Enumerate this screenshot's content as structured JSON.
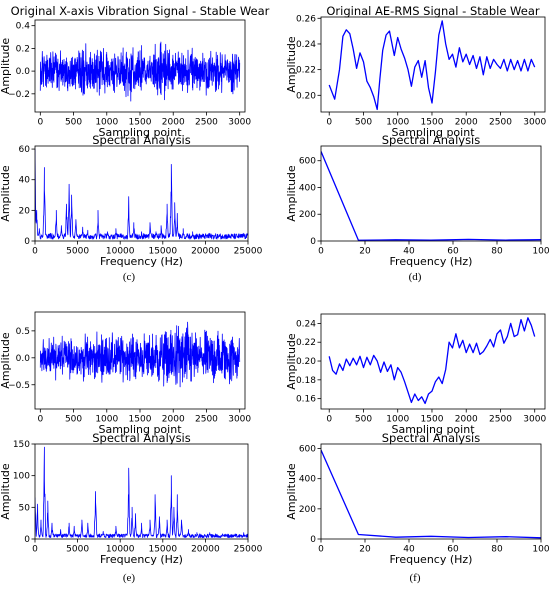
{
  "figure": {
    "captions": [
      "(c)",
      "(d)",
      "(e)",
      "(f)"
    ],
    "line_color": "#0000ff"
  },
  "chart_data": [
    {
      "type": "line",
      "title": "Original X-axis Vibration Signal - Stable Wear",
      "xlabel": "Sampling point",
      "ylabel": "Amplitude",
      "xlim": [
        -80,
        3080
      ],
      "ylim": [
        -0.36,
        0.45
      ],
      "xticks": [
        0,
        500,
        1000,
        1500,
        2000,
        2500,
        3000
      ],
      "yticks": [
        -0.2,
        0.0,
        0.2,
        0.4
      ],
      "ytick_labels": [
        "−0.2",
        "0.0",
        "0.2",
        "0.4"
      ],
      "series": [
        {
          "signal": "noise",
          "n_points": 3000,
          "envelope": [
            [
              0,
              0.2
            ],
            [
              250,
              0.22
            ],
            [
              500,
              0.24
            ],
            [
              650,
              0.33
            ],
            [
              800,
              0.24
            ],
            [
              1000,
              0.25
            ],
            [
              1250,
              0.28
            ],
            [
              1400,
              0.35
            ],
            [
              1550,
              0.25
            ],
            [
              1750,
              0.28
            ],
            [
              1850,
              0.4
            ],
            [
              1950,
              0.26
            ],
            [
              2200,
              0.25
            ],
            [
              2500,
              0.24
            ],
            [
              2800,
              0.24
            ],
            [
              3000,
              0.24
            ]
          ]
        }
      ]
    },
    {
      "type": "line",
      "title": "Original AE-RMS Signal - Stable Wear",
      "xlabel": "Sampling point",
      "ylabel": "Amplitude",
      "xlim": [
        -120,
        3150
      ],
      "ylim": [
        0.187,
        0.261
      ],
      "xticks": [
        0,
        500,
        1000,
        1500,
        2000,
        2500,
        3000
      ],
      "yticks": [
        0.2,
        0.22,
        0.24,
        0.26
      ],
      "ytick_labels": [
        "0.20",
        "0.22",
        "0.24",
        "0.26"
      ],
      "series": [
        {
          "x": [
            0,
            80,
            150,
            200,
            250,
            300,
            350,
            400,
            450,
            500,
            550,
            600,
            650,
            700,
            740,
            780,
            830,
            880,
            950,
            1000,
            1050,
            1100,
            1150,
            1200,
            1250,
            1300,
            1350,
            1400,
            1450,
            1500,
            1550,
            1600,
            1650,
            1700,
            1750,
            1800,
            1850,
            1900,
            1950,
            2000,
            2050,
            2100,
            2150,
            2200,
            2250,
            2300,
            2350,
            2400,
            2450,
            2500,
            2550,
            2600,
            2650,
            2700,
            2750,
            2800,
            2850,
            2900,
            2950,
            3000
          ],
          "y": [
            0.208,
            0.197,
            0.22,
            0.246,
            0.251,
            0.248,
            0.236,
            0.221,
            0.233,
            0.226,
            0.211,
            0.206,
            0.199,
            0.189,
            0.213,
            0.235,
            0.247,
            0.25,
            0.231,
            0.245,
            0.236,
            0.229,
            0.22,
            0.207,
            0.222,
            0.227,
            0.214,
            0.227,
            0.206,
            0.194,
            0.218,
            0.247,
            0.258,
            0.24,
            0.228,
            0.232,
            0.222,
            0.237,
            0.226,
            0.232,
            0.224,
            0.231,
            0.221,
            0.23,
            0.216,
            0.23,
            0.221,
            0.228,
            0.224,
            0.221,
            0.228,
            0.219,
            0.228,
            0.22,
            0.227,
            0.219,
            0.228,
            0.219,
            0.228,
            0.222
          ]
        }
      ]
    },
    {
      "type": "line",
      "title": "Spectral Analysis",
      "xlabel": "Frequency (Hz)",
      "ylabel": "Amplitude",
      "xlim": [
        0,
        25000
      ],
      "ylim": [
        0,
        62
      ],
      "xticks": [
        0,
        5000,
        10000,
        15000,
        20000,
        25000
      ],
      "yticks": [
        0,
        20,
        40,
        60
      ],
      "ytick_labels": [
        "0",
        "20",
        "40",
        "60"
      ],
      "series": [
        {
          "signal": "spectrum",
          "n_points": 700,
          "baseline": 3,
          "peaks": [
            [
              0,
              60
            ],
            [
              200,
              20
            ],
            [
              500,
              8
            ],
            [
              1100,
              48
            ],
            [
              1800,
              5
            ],
            [
              2500,
              20
            ],
            [
              3100,
              10
            ],
            [
              3700,
              24
            ],
            [
              4000,
              37
            ],
            [
              4300,
              30
            ],
            [
              4800,
              14
            ],
            [
              5600,
              9
            ],
            [
              6200,
              7
            ],
            [
              7400,
              20
            ],
            [
              8500,
              6
            ],
            [
              9500,
              8
            ],
            [
              11000,
              29
            ],
            [
              11600,
              12
            ],
            [
              12500,
              6
            ],
            [
              13500,
              12
            ],
            [
              14200,
              6
            ],
            [
              14800,
              10
            ],
            [
              15500,
              24
            ],
            [
              16000,
              50
            ],
            [
              16400,
              25
            ],
            [
              16700,
              18
            ],
            [
              17400,
              8
            ],
            [
              18500,
              6
            ],
            [
              20500,
              5
            ],
            [
              22000,
              4
            ],
            [
              24500,
              5
            ]
          ]
        }
      ]
    },
    {
      "type": "line",
      "title": "Spectral Analysis",
      "xlabel": "Frequency (Hz)",
      "ylabel": "Amplitude",
      "xlim": [
        0,
        100
      ],
      "ylim": [
        0,
        710
      ],
      "xticks": [
        0,
        20,
        40,
        60,
        80,
        100
      ],
      "yticks": [
        0,
        200,
        400,
        600
      ],
      "ytick_labels": [
        "0",
        "200",
        "400",
        "600"
      ],
      "series": [
        {
          "x": [
            0,
            17,
            34,
            50,
            67,
            84,
            100
          ],
          "y": [
            670,
            5,
            9,
            6,
            12,
            7,
            10
          ]
        }
      ]
    },
    {
      "type": "line",
      "title": "",
      "xlabel": "Sampling point",
      "ylabel": "Amplitude",
      "xlim": [
        -80,
        3080
      ],
      "ylim": [
        -0.95,
        0.85
      ],
      "xticks": [
        0,
        500,
        1000,
        1500,
        2000,
        2500,
        3000
      ],
      "yticks": [
        -0.5,
        0.0,
        0.5
      ],
      "ytick_labels": [
        "−0.5",
        "0.0",
        "0.5"
      ],
      "series": [
        {
          "signal": "noise",
          "n_points": 3000,
          "envelope": [
            [
              0,
              0.45
            ],
            [
              200,
              0.5
            ],
            [
              500,
              0.55
            ],
            [
              900,
              0.55
            ],
            [
              1200,
              0.6
            ],
            [
              1500,
              0.55
            ],
            [
              1900,
              0.75
            ],
            [
              2200,
              0.9
            ],
            [
              2400,
              0.6
            ],
            [
              2700,
              0.75
            ],
            [
              3000,
              0.6
            ]
          ]
        }
      ]
    },
    {
      "type": "line",
      "title": "",
      "xlabel": "Sampling point",
      "ylabel": "Amplitude",
      "xlim": [
        -120,
        3150
      ],
      "ylim": [
        0.149,
        0.25
      ],
      "xticks": [
        0,
        500,
        1000,
        1500,
        2000,
        2500,
        3000
      ],
      "yticks": [
        0.16,
        0.18,
        0.2,
        0.22,
        0.24
      ],
      "ytick_labels": [
        "0.16",
        "0.18",
        "0.20",
        "0.22",
        "0.24"
      ],
      "series": [
        {
          "x": [
            0,
            50,
            100,
            150,
            200,
            250,
            300,
            350,
            400,
            450,
            500,
            550,
            600,
            650,
            700,
            750,
            800,
            850,
            900,
            950,
            1000,
            1050,
            1100,
            1150,
            1200,
            1250,
            1300,
            1350,
            1400,
            1450,
            1500,
            1550,
            1600,
            1650,
            1700,
            1750,
            1800,
            1850,
            1900,
            1950,
            2000,
            2050,
            2100,
            2150,
            2200,
            2250,
            2300,
            2350,
            2400,
            2450,
            2500,
            2550,
            2600,
            2650,
            2700,
            2750,
            2800,
            2850,
            2900,
            2950,
            3000
          ],
          "y": [
            0.205,
            0.19,
            0.186,
            0.197,
            0.19,
            0.202,
            0.195,
            0.203,
            0.196,
            0.205,
            0.193,
            0.204,
            0.196,
            0.206,
            0.2,
            0.188,
            0.199,
            0.189,
            0.196,
            0.18,
            0.193,
            0.188,
            0.178,
            0.167,
            0.156,
            0.165,
            0.158,
            0.162,
            0.155,
            0.165,
            0.168,
            0.178,
            0.183,
            0.176,
            0.191,
            0.22,
            0.214,
            0.229,
            0.214,
            0.222,
            0.209,
            0.218,
            0.209,
            0.219,
            0.207,
            0.21,
            0.216,
            0.223,
            0.215,
            0.229,
            0.233,
            0.219,
            0.226,
            0.24,
            0.226,
            0.228,
            0.244,
            0.232,
            0.246,
            0.238,
            0.226
          ]
        }
      ]
    },
    {
      "type": "line",
      "title": "Spectral Analysis",
      "xlabel": "Frequency (Hz)",
      "ylabel": "Amplitude",
      "xlim": [
        0,
        25000
      ],
      "ylim": [
        0,
        150
      ],
      "xticks": [
        0,
        5000,
        10000,
        15000,
        20000,
        25000
      ],
      "yticks": [
        0,
        50,
        100,
        150
      ],
      "ytick_labels": [
        "0",
        "50",
        "100",
        "150"
      ],
      "series": [
        {
          "signal": "spectrum",
          "n_points": 700,
          "baseline": 5,
          "peaks": [
            [
              0,
              65
            ],
            [
              300,
              55
            ],
            [
              700,
              30
            ],
            [
              1100,
              145
            ],
            [
              1500,
              60
            ],
            [
              2000,
              25
            ],
            [
              3000,
              15
            ],
            [
              4000,
              25
            ],
            [
              4600,
              20
            ],
            [
              5500,
              30
            ],
            [
              6200,
              25
            ],
            [
              7100,
              75
            ],
            [
              8000,
              12
            ],
            [
              9500,
              20
            ],
            [
              11000,
              112
            ],
            [
              11400,
              50
            ],
            [
              11800,
              40
            ],
            [
              12500,
              25
            ],
            [
              13500,
              30
            ],
            [
              14100,
              70
            ],
            [
              14600,
              35
            ],
            [
              15500,
              30
            ],
            [
              16000,
              100
            ],
            [
              16300,
              50
            ],
            [
              16700,
              70
            ],
            [
              17200,
              30
            ],
            [
              18000,
              15
            ],
            [
              19000,
              10
            ],
            [
              20500,
              10
            ],
            [
              22000,
              8
            ],
            [
              23500,
              8
            ],
            [
              24500,
              10
            ]
          ]
        }
      ]
    },
    {
      "type": "line",
      "title": "Spectral Analysis",
      "xlabel": "Frequency (Hz)",
      "ylabel": "Amplitude",
      "xlim": [
        0,
        100
      ],
      "ylim": [
        0,
        630
      ],
      "xticks": [
        0,
        20,
        40,
        60,
        80,
        100
      ],
      "yticks": [
        0,
        200,
        400,
        600
      ],
      "ytick_labels": [
        "0",
        "200",
        "400",
        "600"
      ],
      "series": [
        {
          "x": [
            0,
            17,
            34,
            50,
            67,
            84,
            100
          ],
          "y": [
            590,
            30,
            12,
            18,
            10,
            15,
            8
          ]
        }
      ]
    }
  ]
}
